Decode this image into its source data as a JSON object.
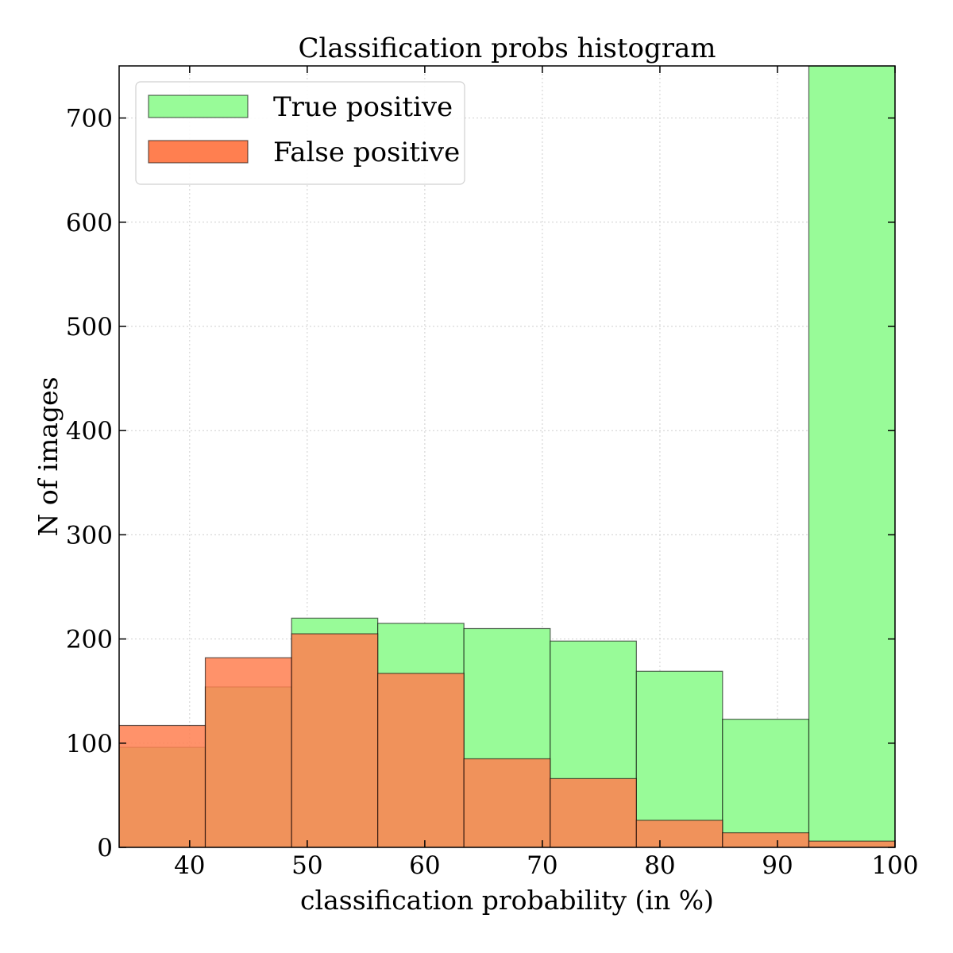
{
  "chart_data": {
    "type": "bar",
    "title": "Classification probs histogram",
    "xlabel": "classification probability (in %)",
    "ylabel": "N of images",
    "xlim": [
      34,
      100
    ],
    "ylim": [
      0,
      750
    ],
    "xticks": [
      40,
      50,
      60,
      70,
      80,
      90,
      100
    ],
    "yticks": [
      0,
      100,
      200,
      300,
      400,
      500,
      600,
      700
    ],
    "grid": true,
    "legend_position": "top-left",
    "bin_edges": [
      34.0,
      41.33,
      48.67,
      56.0,
      63.33,
      70.67,
      78.0,
      85.33,
      92.67,
      100.0
    ],
    "series": [
      {
        "name": "True positive",
        "color": "#98fb98",
        "values": [
          96,
          154,
          220,
          215,
          210,
          198,
          169,
          123,
          750
        ]
      },
      {
        "name": "False positive",
        "color": "#ff7f50",
        "values": [
          117,
          182,
          205,
          167,
          85,
          66,
          26,
          14,
          6
        ]
      }
    ]
  }
}
